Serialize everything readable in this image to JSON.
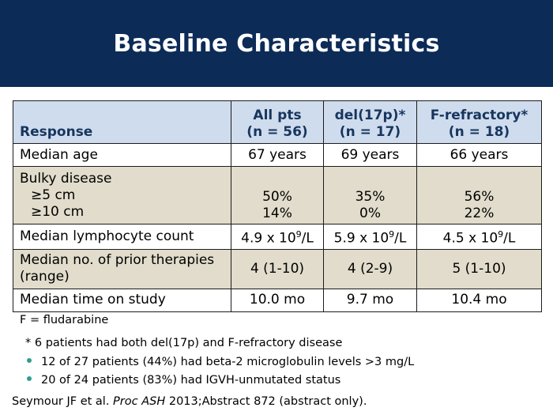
{
  "slide": {
    "title": "Baseline Characteristics"
  },
  "table": {
    "headers": {
      "response": "Response",
      "all_line1": "All pts",
      "all_line2": "(n = 56)",
      "del_line1": "del(17p)*",
      "del_line2": "(n = 17)",
      "fref_line1": "F-refractory*",
      "fref_line2": "(n = 18)"
    },
    "rows": {
      "median_age": {
        "label": "Median age",
        "all": "67 years",
        "del17p": "69 years",
        "frefractory": "66 years"
      },
      "bulky": {
        "label": "Bulky disease",
        "sub1_label": "≥5 cm",
        "sub2_label": "≥10 cm",
        "sub1": {
          "all": "50%",
          "del17p": "35%",
          "frefractory": "56%"
        },
        "sub2": {
          "all": "14%",
          "del17p": "0%",
          "frefractory": "22%"
        }
      },
      "lymph": {
        "label": "Median lymphocyte count",
        "all_base": "4.9 x 10",
        "del17p_base": "5.9 x 10",
        "frefractory_base": "4.5 x 10",
        "exponent": "9",
        "unit": "/L"
      },
      "prior": {
        "label_line1": "Median no. of prior therapies",
        "label_line2": "(range)",
        "all": "4 (1-10)",
        "del17p": "4 (2-9)",
        "frefractory": "5 (1-10)"
      },
      "time": {
        "label": "Median time on study",
        "all": "10.0 mo",
        "del17p": "9.7 mo",
        "frefractory": "10.4 mo"
      }
    }
  },
  "notes": {
    "abbrev": "F = fludarabine",
    "footnote": "* 6 patients had both del(17p) and F-refractory disease",
    "bullets": [
      "12 of 27 patients (44%) had beta-2 microglobulin levels >3 mg/L",
      "20 of 24 patients (83%) had IGVH-unmutated status"
    ]
  },
  "citation": {
    "authors": "Seymour JF et al. ",
    "journal": "Proc ASH",
    "rest": " 2013;Abstract 872 (abstract only)."
  },
  "colors": {
    "header_band": "#0c2b57",
    "table_header": "#cfdcee",
    "row_shade": "#e1dccb",
    "bullet": "#2e9e8f"
  }
}
